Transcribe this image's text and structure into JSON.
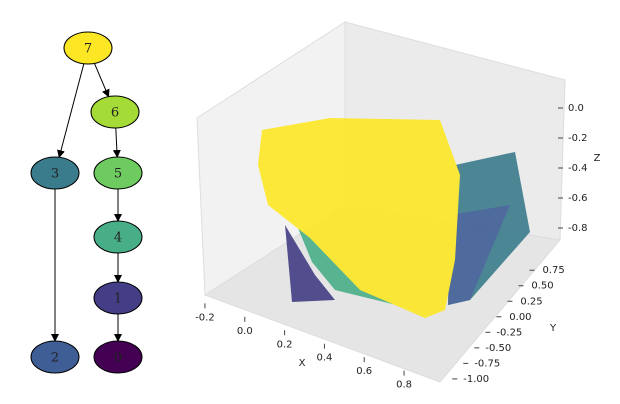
{
  "tree": {
    "nodes": [
      {
        "label": "7",
        "color": "#fde725"
      },
      {
        "label": "6",
        "color": "#a5db36"
      },
      {
        "label": "3",
        "color": "#3b7c8c"
      },
      {
        "label": "5",
        "color": "#6ecb5f"
      },
      {
        "label": "4",
        "color": "#48ae87"
      },
      {
        "label": "1",
        "color": "#433e85"
      },
      {
        "label": "2",
        "color": "#3f5e96"
      },
      {
        "label": "0",
        "color": "#440154"
      }
    ],
    "edges": [
      [
        0,
        2
      ],
      [
        0,
        1
      ],
      [
        1,
        3
      ],
      [
        3,
        4
      ],
      [
        4,
        5
      ],
      [
        5,
        7
      ],
      [
        2,
        6
      ]
    ]
  },
  "chart_data": {
    "type": "scatter3d",
    "xlabel": "X",
    "ylabel": "Y",
    "zlabel": "Z",
    "xlim": [
      -0.25,
      0.85
    ],
    "xticks": [
      -0.2,
      {
        "value": 0,
        "label": "0.0"
      },
      0.2,
      0.4,
      0.6,
      0.8
    ],
    "ylim": [
      -1.05,
      0.85
    ],
    "yticks": [
      {
        "value": -1,
        "label": "-1.00"
      },
      -0.75,
      {
        "value": -0.5,
        "label": "-0.50"
      },
      -0.25,
      {
        "value": 0,
        "label": "0.00"
      },
      0.25,
      {
        "value": 0.5,
        "label": "0.50"
      },
      0.75
    ],
    "zlim": [
      -0.9,
      0.1
    ],
    "zticks": [
      -0.8,
      -0.6,
      -0.4,
      -0.2,
      {
        "value": 0,
        "label": "0.0"
      }
    ]
  }
}
